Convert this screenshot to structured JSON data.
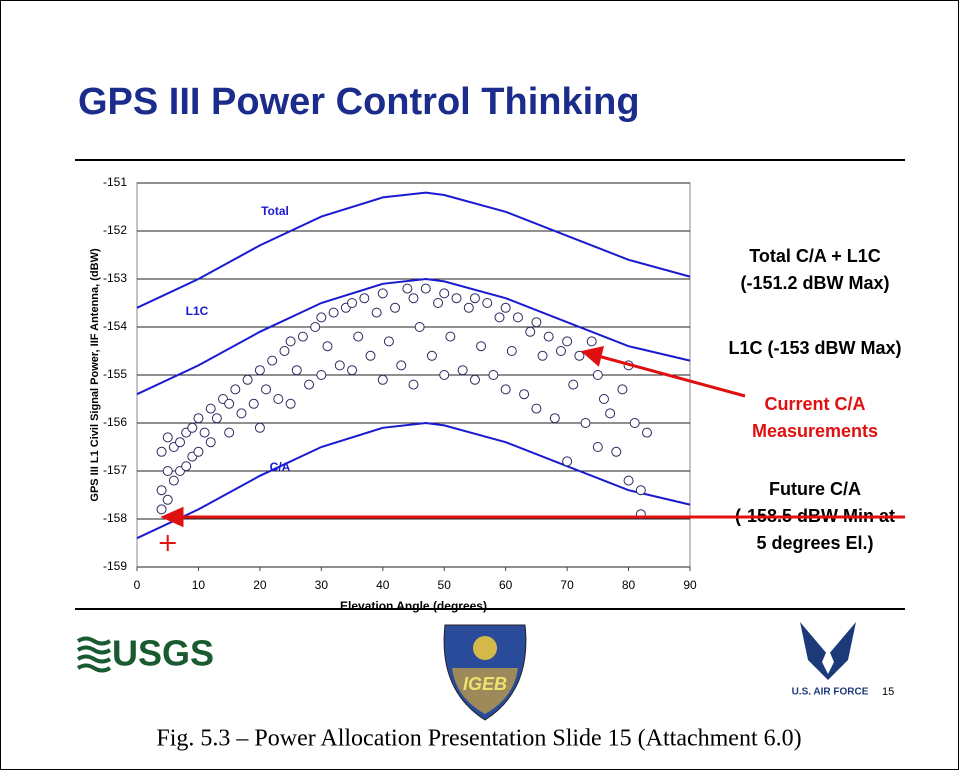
{
  "chart_data": {
    "type": "scatter",
    "title": "GPS III Power Control Thinking",
    "x_label": "Elevation Angle (degrees)",
    "y_label": "GPS III L1 Civil Signal Power, IIF Antenna, (dBW)",
    "xlim": [
      0,
      90
    ],
    "xticks": [
      0,
      10,
      20,
      30,
      40,
      50,
      60,
      70,
      80,
      90
    ],
    "ylim": [
      -159,
      -151
    ],
    "yticks": [
      -151,
      -152,
      -153,
      -154,
      -155,
      -156,
      -157,
      -158,
      -159
    ],
    "grid": true,
    "curves": [
      {
        "name": "Total",
        "color": "#1a1ad0",
        "x": [
          0,
          10,
          20,
          30,
          40,
          47,
          50,
          60,
          70,
          80,
          90
        ],
        "values": [
          -153.6,
          -153.0,
          -152.3,
          -151.7,
          -151.3,
          -151.2,
          -151.25,
          -151.6,
          -152.1,
          -152.6,
          -152.95
        ]
      },
      {
        "name": "L1C",
        "color": "#1a1ad0",
        "x": [
          0,
          10,
          20,
          30,
          40,
          47,
          50,
          60,
          70,
          80,
          90
        ],
        "values": [
          -155.4,
          -154.8,
          -154.1,
          -153.5,
          -153.1,
          -153.0,
          -153.05,
          -153.4,
          -153.9,
          -154.4,
          -154.7
        ]
      },
      {
        "name": "C/A",
        "color": "#1a1ad0",
        "x": [
          0,
          10,
          20,
          30,
          40,
          47,
          50,
          60,
          70,
          80,
          90
        ],
        "values": [
          -158.4,
          -157.8,
          -157.1,
          -156.5,
          -156.1,
          -156.0,
          -156.05,
          -156.4,
          -156.9,
          -157.4,
          -157.7
        ]
      }
    ],
    "points": {
      "color": "#2a2a60",
      "x": [
        4,
        4,
        4,
        5,
        5,
        5,
        6,
        6,
        7,
        7,
        8,
        8,
        9,
        9,
        10,
        10,
        11,
        12,
        12,
        13,
        14,
        15,
        15,
        16,
        17,
        18,
        19,
        20,
        20,
        21,
        22,
        23,
        24,
        25,
        25,
        26,
        27,
        28,
        29,
        30,
        30,
        31,
        32,
        33,
        34,
        35,
        35,
        36,
        37,
        38,
        39,
        40,
        40,
        41,
        42,
        43,
        44,
        45,
        45,
        46,
        47,
        48,
        49,
        50,
        50,
        51,
        52,
        53,
        54,
        55,
        55,
        56,
        57,
        58,
        59,
        60,
        60,
        61,
        62,
        63,
        64,
        65,
        65,
        66,
        67,
        68,
        69,
        70,
        70,
        71,
        72,
        73,
        74,
        75,
        75,
        76,
        77,
        78,
        79,
        80,
        80,
        81,
        82,
        82,
        83
      ],
      "values": [
        -156.6,
        -157.4,
        -157.8,
        -156.3,
        -157.0,
        -157.6,
        -156.5,
        -157.2,
        -156.4,
        -157.0,
        -156.2,
        -156.9,
        -156.1,
        -156.7,
        -155.9,
        -156.6,
        -156.2,
        -155.7,
        -156.4,
        -155.9,
        -155.5,
        -155.6,
        -156.2,
        -155.3,
        -155.8,
        -155.1,
        -155.6,
        -154.9,
        -156.1,
        -155.3,
        -154.7,
        -155.5,
        -154.5,
        -154.3,
        -155.6,
        -154.9,
        -154.2,
        -155.2,
        -154.0,
        -153.8,
        -155.0,
        -154.4,
        -153.7,
        -154.8,
        -153.6,
        -153.5,
        -154.9,
        -154.2,
        -153.4,
        -154.6,
        -153.7,
        -153.3,
        -155.1,
        -154.3,
        -153.6,
        -154.8,
        -153.2,
        -153.4,
        -155.2,
        -154.0,
        -153.2,
        -154.6,
        -153.5,
        -153.3,
        -155.0,
        -154.2,
        -153.4,
        -154.9,
        -153.6,
        -153.4,
        -155.1,
        -154.4,
        -153.5,
        -155.0,
        -153.8,
        -153.6,
        -155.3,
        -154.5,
        -153.8,
        -155.4,
        -154.1,
        -153.9,
        -155.7,
        -154.6,
        -154.2,
        -155.9,
        -154.5,
        -154.3,
        -156.8,
        -155.2,
        -154.6,
        -156.0,
        -154.3,
        -155.0,
        -156.5,
        -155.5,
        -155.8,
        -156.6,
        -155.3,
        -154.8,
        -157.2,
        -156.0,
        -157.4,
        -157.9,
        -156.2
      ]
    },
    "marker": {
      "x": 5,
      "y": -158.5,
      "color": "#e01010"
    },
    "annotations": {
      "total": [
        "Total C/A + L1C",
        "(-151.2 dBW Max)"
      ],
      "l1c": "L1C (-153 dBW Max)",
      "current": [
        "Current C/A",
        "Measurements"
      ],
      "future": [
        "Future C/A",
        "(-158.5 dBW Min at",
        "5 degrees El.)"
      ]
    }
  },
  "logos": {
    "usgs": "USGS",
    "igeb": "IGEB",
    "air_force": "U.S. AIR FORCE"
  },
  "page_number": "15",
  "caption": "Fig. 5.3 – Power Allocation Presentation Slide 15 (Attachment 6.0)"
}
